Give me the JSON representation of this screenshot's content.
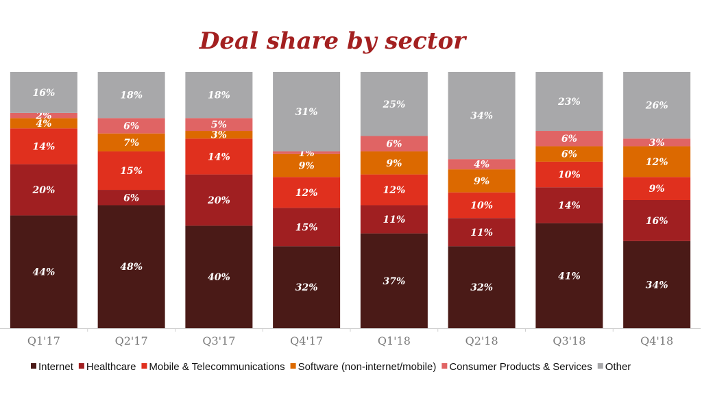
{
  "chart_data": {
    "type": "bar",
    "stacked": true,
    "title": "Deal share by sector",
    "categories": [
      "Q1'17",
      "Q2'17",
      "Q3'17",
      "Q4'17",
      "Q1'18",
      "Q2'18",
      "Q3'18",
      "Q4'18"
    ],
    "ylim": [
      0,
      100
    ],
    "grid": false,
    "legend_position": "bottom",
    "value_suffix": "%",
    "series": [
      {
        "name": "Internet",
        "color": "#4a1a17",
        "values": [
          44,
          48,
          40,
          32,
          37,
          32,
          41,
          34
        ]
      },
      {
        "name": "Healthcare",
        "color": "#a01f21",
        "values": [
          20,
          6,
          20,
          15,
          11,
          11,
          14,
          16
        ]
      },
      {
        "name": "Mobile & Telecommunications",
        "color": "#e0301e",
        "values": [
          14,
          15,
          14,
          12,
          12,
          10,
          10,
          9
        ]
      },
      {
        "name": "Software (non-internet/mobile)",
        "color": "#dc6900",
        "values": [
          4,
          7,
          3,
          9,
          9,
          9,
          6,
          12
        ]
      },
      {
        "name": "Consumer Products & Services",
        "color": "#e06464",
        "values": [
          2,
          6,
          5,
          1,
          6,
          4,
          6,
          3
        ]
      },
      {
        "name": "Other",
        "color": "#a8a8aa",
        "values": [
          16,
          18,
          18,
          31,
          25,
          34,
          23,
          26
        ]
      }
    ]
  }
}
